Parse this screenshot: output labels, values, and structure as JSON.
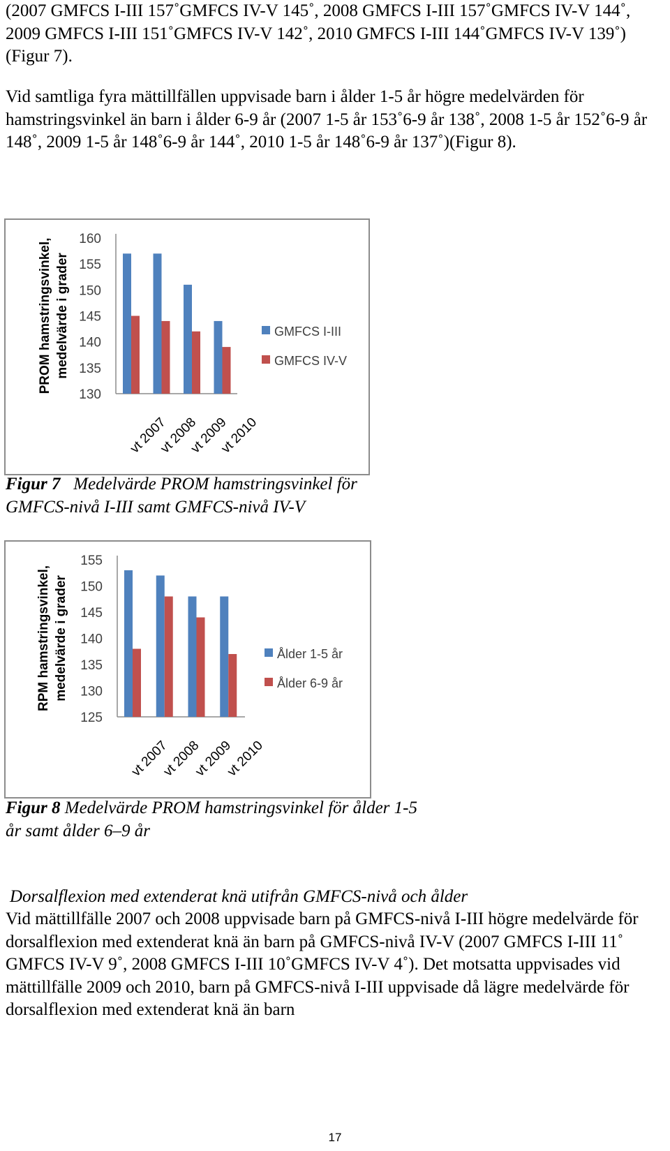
{
  "paragraphs": {
    "p1": "(2007 GMFCS I-III 157˚GMFCS IV-V 145˚, 2008 GMFCS I-III 157˚GMFCS IV-V 144˚, 2009 GMFCS I-III 151˚GMFCS IV-V 142˚, 2010 GMFCS I-III 144˚GMFCS IV-V 139˚) (Figur 7).",
    "p2": "Vid samtliga fyra mättillfällen uppvisade barn i ålder 1-5 år högre medelvärden för hamstringsvinkel än barn i ålder 6-9 år (2007 1-5 år 153˚6-9 år 138˚, 2008 1-5 år 152˚6-9 år 148˚, 2009 1-5 år 148˚6-9 år 144˚, 2010 1-5 år 148˚6-9 år 137˚)(Figur 8).",
    "subheading": "Dorsalflexion med extenderat knä utifrån GMFCS-nivå och ålder",
    "p3": "Vid mättillfälle 2007 och 2008 uppvisade barn på GMFCS-nivå I-III högre medelvärde för dorsalflexion med extenderat knä än barn på GMFCS-nivå IV-V (2007 GMFCS I-III 11˚ GMFCS IV-V 9˚, 2008 GMFCS I-III 10˚GMFCS IV-V 4˚). Det motsatta uppvisades vid mättillfälle 2009 och 2010, barn på GMFCS-nivå I-III uppvisade då lägre medelvärde för dorsalflexion med extenderat knä än barn"
  },
  "captions": {
    "fig7_label": "Figur 7",
    "fig7_text": "Medelvärde PROM hamstringsvinkel för GMFCS-nivå I-III samt GMFCS-nivå IV-V",
    "fig8_label": "Figur 8",
    "fig8_text": "Medelvärde PROM hamstringsvinkel för ålder 1-5 år samt ålder 6–9 år"
  },
  "page_number": "17",
  "colors": {
    "blue": "#4F81BD",
    "red": "#C0504D",
    "grid": "#8c8c8c"
  },
  "chart_data": [
    {
      "type": "bar",
      "categories": [
        "vt 2007",
        "vt 2008",
        "vt 2009",
        "vt 2010"
      ],
      "series": [
        {
          "name": "GMFCS I-III",
          "values": [
            157,
            157,
            151,
            144
          ]
        },
        {
          "name": "GMFCS IV-V",
          "values": [
            145,
            144,
            142,
            139
          ]
        }
      ],
      "ylabel": "PROM hamstringsvinkel, medelvärde i grader",
      "ylim": [
        130,
        160
      ],
      "yticks": [
        160,
        155,
        150,
        145,
        140,
        135,
        130
      ],
      "grid": false,
      "legend": "right"
    },
    {
      "type": "bar",
      "categories": [
        "vt 2007",
        "vt 2008",
        "vt 2009",
        "vt 2010"
      ],
      "series": [
        {
          "name": "Ålder 1-5 år",
          "values": [
            153,
            152,
            148,
            148
          ]
        },
        {
          "name": "Ålder 6-9 år",
          "values": [
            138,
            148,
            144,
            137
          ]
        }
      ],
      "ylabel": "RPM hamstringsvinkel, medelvärde i grader",
      "ylim": [
        125,
        155
      ],
      "yticks": [
        155,
        150,
        145,
        140,
        135,
        130,
        125
      ],
      "grid": false,
      "legend": "right"
    }
  ]
}
